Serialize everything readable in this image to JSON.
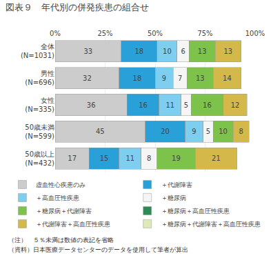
{
  "chart_data": {
    "type": "bar",
    "orientation": "horizontal",
    "stacked": true,
    "data_labels": true,
    "title": "図表９　年代別の併発疾患の組合せ",
    "categories": [
      "全体\n(N=1031)",
      "男性\n(N=696)",
      "女性\n(N=335)",
      "50歳未満\n(N=599)",
      "50歳以上\n(N=432)"
    ],
    "series": [
      {
        "name": "虚血性心疾患のみ",
        "color": "#cccccc",
        "values": [
          33,
          32,
          36,
          45,
          17
        ]
      },
      {
        "name": "＋代謝障害",
        "color": "#29a0d8",
        "values": [
          18,
          18,
          16,
          20,
          15
        ]
      },
      {
        "name": "＋高血圧性疾患",
        "color": "#7ecef0",
        "values": [
          10,
          9,
          11,
          9,
          11
        ]
      },
      {
        "name": "＋糖尿病",
        "color": "#f5f5f5",
        "values": [
          6,
          7,
          5,
          5,
          8
        ]
      },
      {
        "name": "＋糖尿病＋代謝障害",
        "color": "#7dc24b",
        "values": [
          13,
          13,
          16,
          10,
          19
        ]
      },
      {
        "name": "＋糖尿病＋高血圧性疾患",
        "color": "#2e8b57",
        "values": [
          null,
          null,
          null,
          null,
          null
        ]
      },
      {
        "name": "＋代謝障害＋高血圧性疾患",
        "color": "#d4b84a",
        "values": [
          13,
          14,
          12,
          8,
          21
        ]
      },
      {
        "name": "＋糖尿病＋代謝障害＋高血圧性疾患",
        "color": "#dde9bb",
        "values": [
          null,
          null,
          null,
          null,
          null
        ]
      }
    ],
    "xlim": [
      0,
      100
    ],
    "xticks": [
      {
        "value": 0,
        "label": "0%"
      },
      {
        "value": 25,
        "label": "25%"
      },
      {
        "value": 50,
        "label": "50%"
      },
      {
        "value": 75,
        "label": "75%"
      },
      {
        "value": 100,
        "label": "100%"
      }
    ],
    "grid": true,
    "legend": "bottom",
    "annotations": [
      "（注）　５％未満は数値の表記を省略",
      "（資料）日本医療データセンターのデータを使用して筆者が算出"
    ]
  }
}
